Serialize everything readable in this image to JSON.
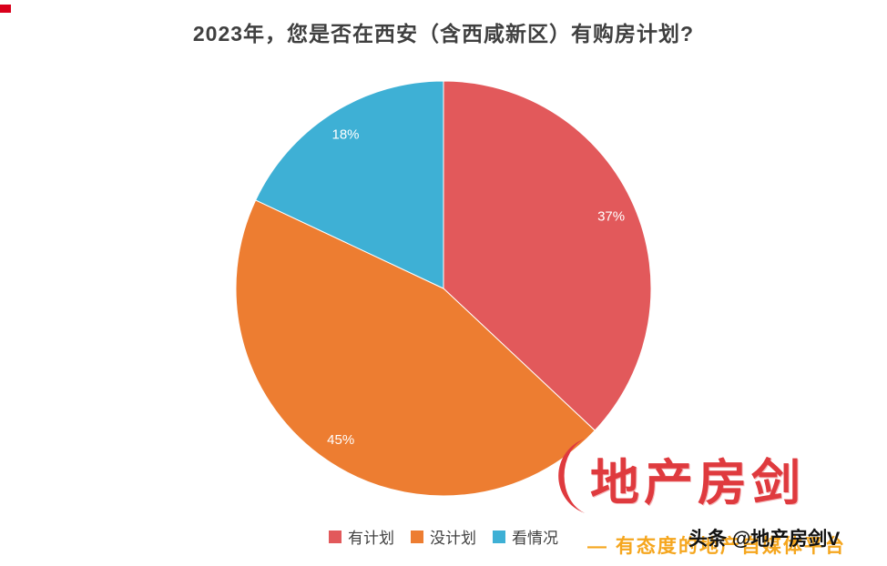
{
  "chart_data": {
    "type": "pie",
    "title": "2023年，您是否在西安（含西咸新区）有购房计划?",
    "start_angle_deg": 0,
    "direction": "clockwise",
    "data_labels": "percent-inside",
    "legend_position": "bottom",
    "slices": [
      {
        "label": "有计划",
        "value": 37,
        "percent_label": "37%",
        "color": "#e2595b"
      },
      {
        "label": "没计划",
        "value": 45,
        "percent_label": "45%",
        "color": "#ed7d31"
      },
      {
        "label": "看情况",
        "value": 18,
        "percent_label": "18%",
        "color": "#3eb0d5"
      }
    ]
  },
  "watermark": {
    "brand": "地产房剑",
    "tagline": "— 有态度的地产自媒体平台",
    "credit": "头条 @地产房剑V",
    "brand_color": "#df3a3e",
    "tagline_color": "#f5a61e"
  }
}
